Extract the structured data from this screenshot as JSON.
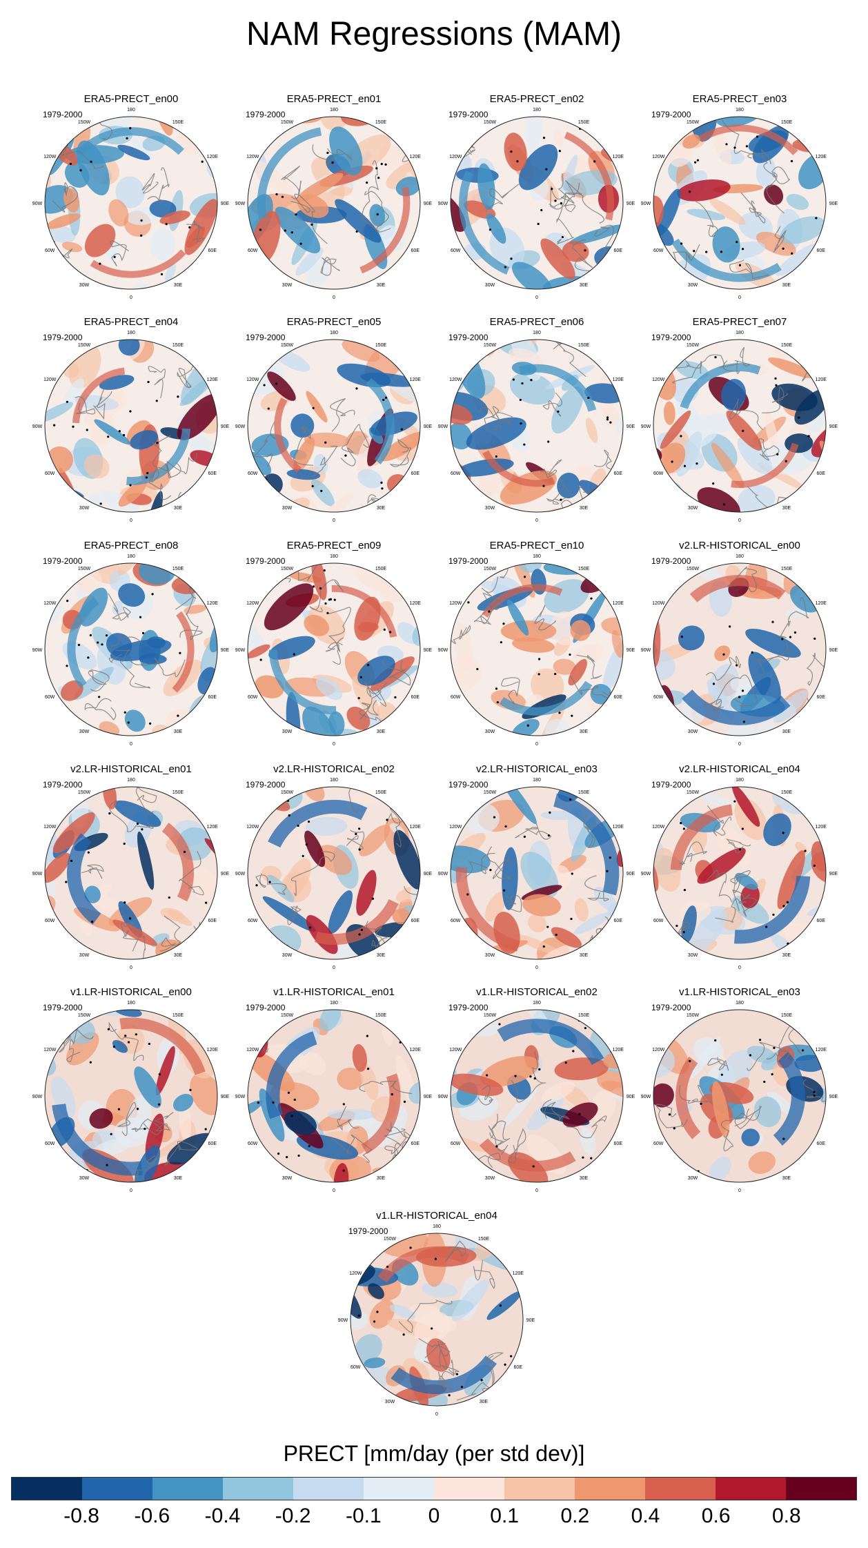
{
  "title": "NAM Regressions (MAM)",
  "colorbar": {
    "label": "PRECT [mm/day (per std dev)]",
    "colors": [
      "#053061",
      "#2166ac",
      "#4393c3",
      "#92c5de",
      "#c6dbef",
      "#e3edf5",
      "#fbe5dc",
      "#f7c4a8",
      "#ef9870",
      "#d6604d",
      "#b2182b",
      "#67001f"
    ],
    "ticks": [
      "-0.8",
      "-0.6",
      "-0.4",
      "-0.2",
      "-0.1",
      "0",
      "0.1",
      "0.2",
      "0.4",
      "0.6",
      "0.8"
    ]
  },
  "map_labels": {
    "lon": [
      "180",
      "150E",
      "120E",
      "90E",
      "60E",
      "30E",
      "0",
      "30W",
      "60W",
      "90W",
      "120W",
      "150W"
    ]
  },
  "panels": [
    {
      "title": "ERA5-PRECT_en00",
      "period": "1979-2000",
      "style": "era5"
    },
    {
      "title": "ERA5-PRECT_en01",
      "period": "1979-2000",
      "style": "era5"
    },
    {
      "title": "ERA5-PRECT_en02",
      "period": "1979-2000",
      "style": "era5"
    },
    {
      "title": "ERA5-PRECT_en03",
      "period": "1979-2000",
      "style": "era5"
    },
    {
      "title": "ERA5-PRECT_en04",
      "period": "1979-2000",
      "style": "era5"
    },
    {
      "title": "ERA5-PRECT_en05",
      "period": "1979-2000",
      "style": "era5"
    },
    {
      "title": "ERA5-PRECT_en06",
      "period": "1979-2000",
      "style": "era5"
    },
    {
      "title": "ERA5-PRECT_en07",
      "period": "1979-2000",
      "style": "era5"
    },
    {
      "title": "ERA5-PRECT_en08",
      "period": "1979-2000",
      "style": "era5"
    },
    {
      "title": "ERA5-PRECT_en09",
      "period": "1979-2000",
      "style": "era5"
    },
    {
      "title": "ERA5-PRECT_en10",
      "period": "1979-2000",
      "style": "era5"
    },
    {
      "title": "v2.LR-HISTORICAL_en00",
      "period": "1979-2000",
      "style": "v2"
    },
    {
      "title": "v2.LR-HISTORICAL_en01",
      "period": "1979-2000",
      "style": "v2"
    },
    {
      "title": "v2.LR-HISTORICAL_en02",
      "period": "1979-2000",
      "style": "v2"
    },
    {
      "title": "v2.LR-HISTORICAL_en03",
      "period": "1979-2000",
      "style": "v2"
    },
    {
      "title": "v2.LR-HISTORICAL_en04",
      "period": "1979-2000",
      "style": "v2"
    },
    {
      "title": "v1.LR-HISTORICAL_en00",
      "period": "1979-2000",
      "style": "v1"
    },
    {
      "title": "v1.LR-HISTORICAL_en01",
      "period": "1979-2000",
      "style": "v1"
    },
    {
      "title": "v1.LR-HISTORICAL_en02",
      "period": "1979-2000",
      "style": "v1"
    },
    {
      "title": "v1.LR-HISTORICAL_en03",
      "period": "1979-2000",
      "style": "v1"
    },
    {
      "title": "v1.LR-HISTORICAL_en04",
      "period": "1979-2000",
      "style": "v1"
    }
  ]
}
